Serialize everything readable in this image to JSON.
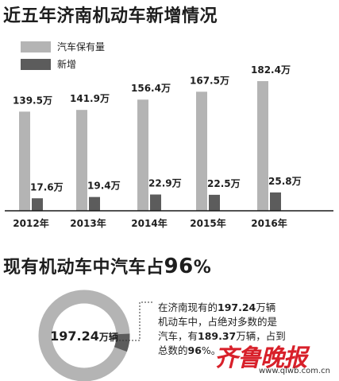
{
  "chart_title": "近五年济南机动车新增情况",
  "chart_data": {
    "type": "bar",
    "title": "近五年济南机动车新增情况",
    "categories": [
      "2012年",
      "2013年",
      "2014年",
      "2015年",
      "2016年"
    ],
    "unit": "万",
    "series": [
      {
        "name": "汽车保有量",
        "values": [
          139.5,
          141.9,
          156.4,
          167.5,
          182.4
        ],
        "color": "#b4b4b4"
      },
      {
        "name": "新增",
        "values": [
          17.6,
          19.4,
          22.9,
          22.5,
          25.8
        ],
        "color": "#5c5c5c"
      }
    ],
    "value_labels": {
      "series0": [
        "139.5万",
        "141.9万",
        "156.4万",
        "167.5万",
        "182.4万"
      ],
      "series1": [
        "17.6万",
        "19.4万",
        "22.9万",
        "22.5万",
        "25.8万"
      ]
    },
    "legend": "top-left",
    "ylim": [
      0,
      182.4
    ],
    "grid": false
  },
  "donut": {
    "title_prefix": "现有机动车中汽车占",
    "title_pct": "96",
    "title_suffix": "%",
    "center_value": "197.24",
    "center_unit": "万辆",
    "share": 0.96,
    "ring_color": "#b4b4b4",
    "highlight_color": "#5c5c5c"
  },
  "note": {
    "l1_a": "在济南现有的",
    "l1_b": "197.24",
    "l1_c": "万辆",
    "l2": "机动车中，占绝对多数的是",
    "l3_a": "汽车，有",
    "l3_b": "189.37",
    "l3_c": "万辆，占到",
    "l4_a": "总数的",
    "l4_b": "96",
    "l4_c": "%。"
  },
  "watermark": {
    "logo": "齐鲁晚报",
    "url": "www.qlwb.com.cn"
  }
}
